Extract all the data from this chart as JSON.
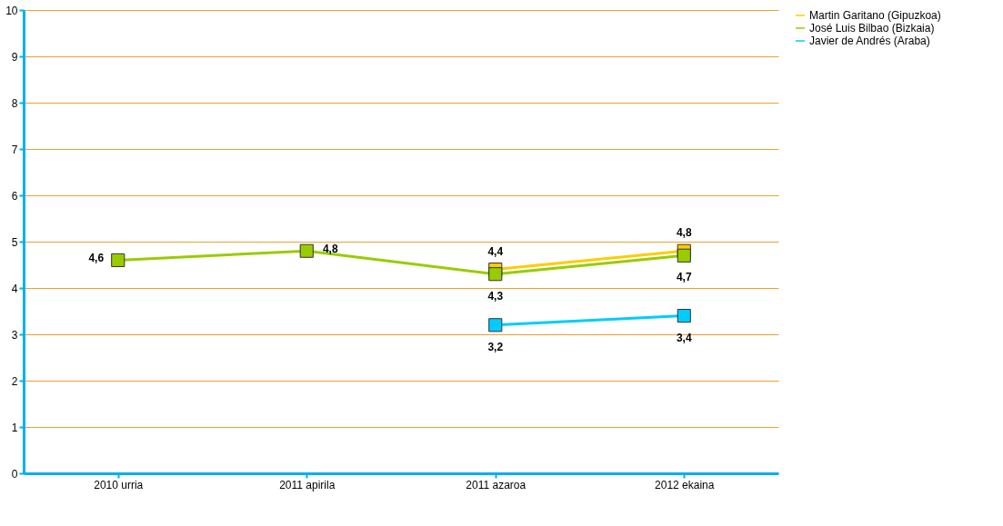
{
  "chart_data": {
    "type": "line",
    "categories": [
      "2010 urria",
      "2011 apirila",
      "2011 azaroa",
      "2012 ekaina"
    ],
    "series": [
      {
        "name": "Martin Garitano (Gipuzkoa)",
        "color": "#ffcc00",
        "values": [
          null,
          null,
          4.4,
          4.8
        ],
        "value_labels": [
          null,
          null,
          "4,4",
          "4,8"
        ]
      },
      {
        "name": "José Luis Bilbao (Bizkaia)",
        "color": "#99cc00",
        "values": [
          4.6,
          4.8,
          4.3,
          4.7
        ],
        "value_labels": [
          "4,6",
          "4,8",
          "4,3",
          "4,7"
        ]
      },
      {
        "name": "Javier de Andrés (Araba)",
        "color": "#00ccff",
        "values": [
          null,
          null,
          3.2,
          3.4
        ],
        "value_labels": [
          null,
          null,
          "3,2",
          "3,4"
        ]
      }
    ],
    "ylim": [
      0,
      10
    ],
    "yticks": [
      0,
      1,
      2,
      3,
      4,
      5,
      6,
      7,
      8,
      9,
      10
    ],
    "grid": "y",
    "legend": "right",
    "marker": "square",
    "line_style": "solid"
  }
}
